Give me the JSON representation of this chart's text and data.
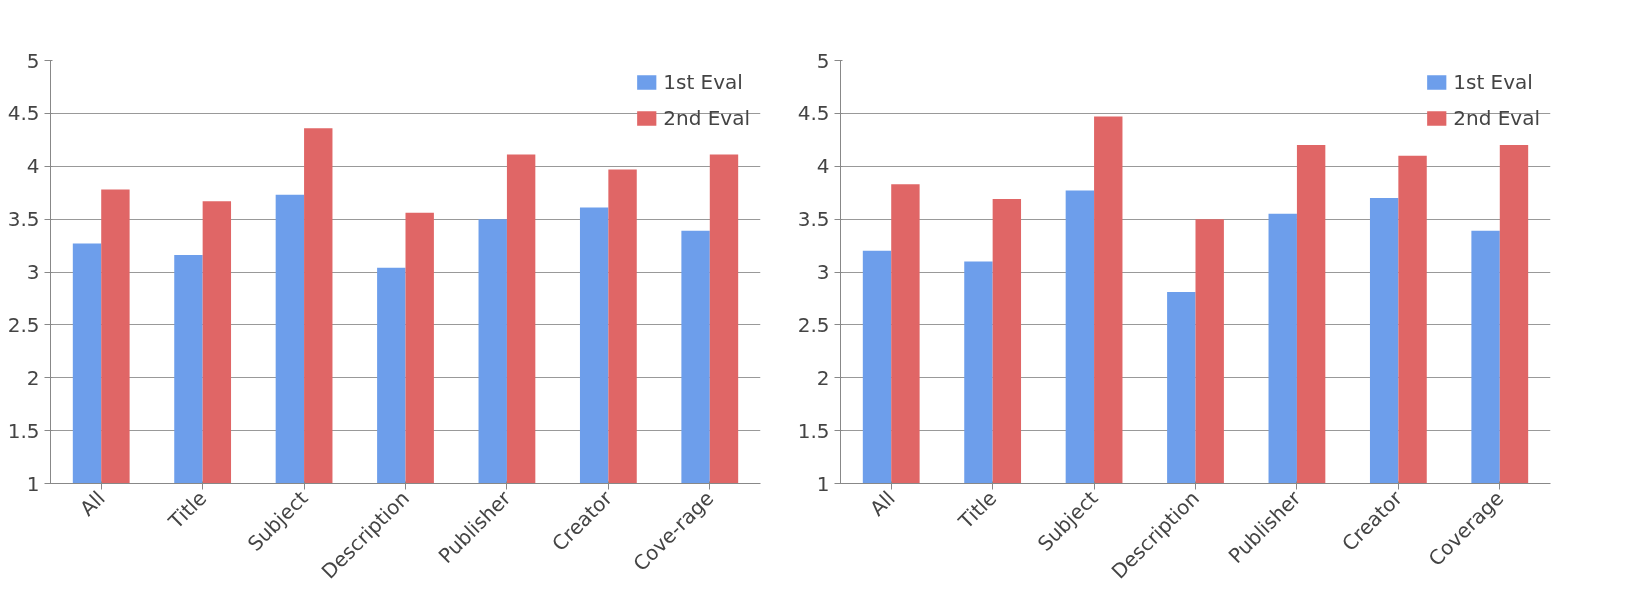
{
  "chart_data": [
    {
      "type": "bar",
      "categories": [
        "All",
        "Title",
        "Subject",
        "Description",
        "Publisher",
        "Creator",
        "Cove-rage"
      ],
      "ylim": [
        1,
        5
      ],
      "yticks": [
        1,
        1.5,
        2,
        2.5,
        3,
        3.5,
        4,
        4.5,
        5
      ],
      "grid": "y",
      "legend": "top right",
      "series": [
        {
          "name": "1st Eval",
          "color": "#6d9eeb",
          "values": [
            3.27,
            3.16,
            3.73,
            3.04,
            3.5,
            3.61,
            3.39
          ]
        },
        {
          "name": "2nd Eval",
          "color": "#e06666",
          "values": [
            3.78,
            3.67,
            4.36,
            3.56,
            4.11,
            3.97,
            4.11
          ]
        }
      ]
    },
    {
      "type": "bar",
      "categories": [
        "All",
        "Title",
        "Subject",
        "Description",
        "Publisher",
        "Creator",
        "Coverage"
      ],
      "ylim": [
        1,
        5
      ],
      "yticks": [
        1,
        1.5,
        2,
        2.5,
        3,
        3.5,
        4,
        4.5,
        5
      ],
      "grid": "y",
      "legend": "top right",
      "series": [
        {
          "name": "1st Eval",
          "color": "#6d9eeb",
          "values": [
            3.2,
            3.1,
            3.77,
            2.81,
            3.55,
            3.7,
            3.39
          ]
        },
        {
          "name": "2nd Eval",
          "color": "#e06666",
          "values": [
            3.83,
            3.69,
            4.47,
            3.5,
            4.2,
            4.1,
            4.2
          ]
        }
      ]
    }
  ]
}
